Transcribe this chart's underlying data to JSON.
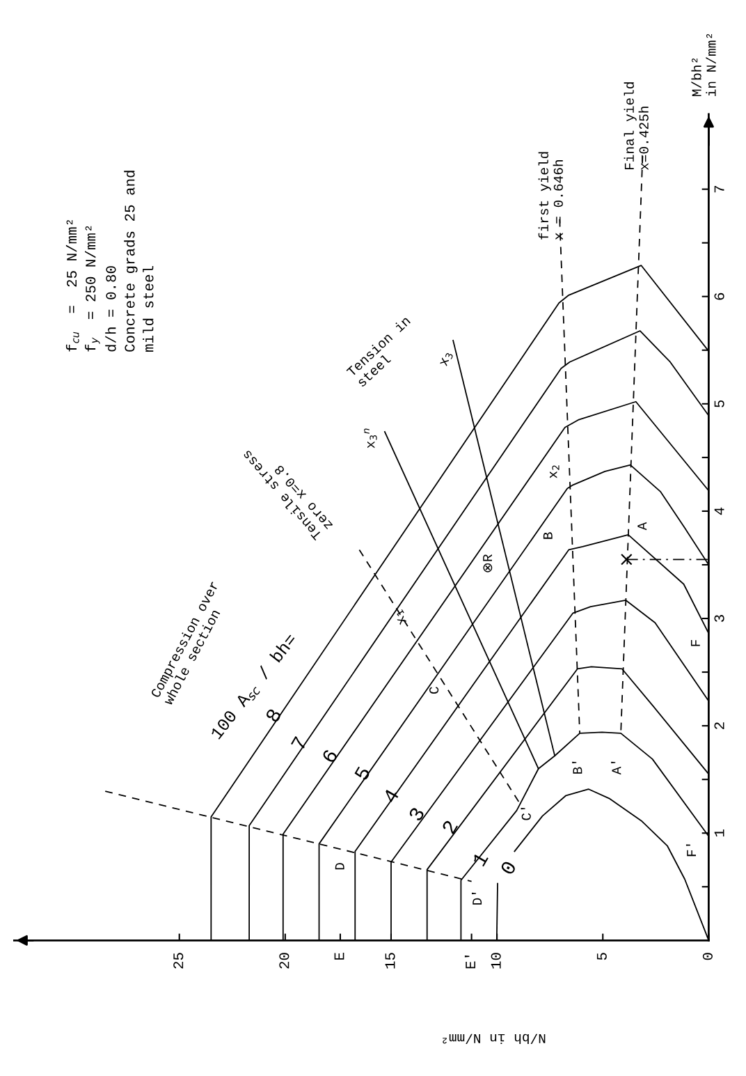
{
  "chart_data": {
    "type": "line",
    "xlabel": "N/bh in N/mm²",
    "ylabel": "M/bh²\nin N/mm²",
    "xlim": [
      32.8,
      0
    ],
    "ylim": [
      0,
      7.7
    ],
    "xticks": [
      0,
      5,
      10,
      {
        "value": 11.2,
        "label": "E'"
      },
      15,
      {
        "value": 17.4,
        "label": "E"
      },
      20,
      25
    ],
    "yticks": [
      {
        "value": 0.5,
        "label": null
      },
      1,
      {
        "value": 1.5,
        "label": null
      },
      2,
      {
        "value": 2.5,
        "label": null
      },
      3,
      {
        "value": 3.5,
        "label": null
      },
      4,
      {
        "value": 4.5,
        "label": null
      },
      5,
      {
        "value": 5.5,
        "label": null
      },
      6,
      {
        "value": 6.5,
        "label": null
      },
      7
    ],
    "annotations": [
      "f$_{cu}$  =  25 N/mm²\nf$_{y}$  = 250 N/mm²\nd/h = 0.80\nConcrete grads 25 and\nmild steel",
      "Compression over\nwhole section",
      "100 A$_{sc}$ / bh=",
      {
        "text": "0",
        "x": 10.0,
        "y": 0.53
      },
      {
        "text": "1",
        "x": 10.74,
        "y": 0.75
      },
      "2",
      "3",
      {
        "text": "4",
        "x": 14.95,
        "y": 1.34
      },
      {
        "text": "5",
        "x": 16.3,
        "y": 1.55
      },
      "6",
      {
        "text": "7",
        "x": 19.29,
        "y": 1.83
      },
      {
        "text": "8",
        "x": 20.5,
        "y": 2.09
      },
      "Tensile stress\nzero x=0.8",
      "Tension in\nsteel",
      "x$_{3}$",
      "x$_{3}$$^{n}$",
      {
        "text": "x$_{1}$",
        "x": 14.57,
        "y": 3.01
      },
      "x$_{2}$",
      "⊗R",
      "first yield\nx = 0.646h",
      "Final yield\nx=0.425h",
      "A",
      "B",
      "A'",
      "B'",
      "C",
      "C'",
      "D",
      "D'",
      "F",
      "F'"
    ],
    "series": [
      {
        "color": "#000000",
        "line_style": "solid",
        "x": [
          10.01,
          9.97
        ],
        "values": [
          0,
          0.53
        ]
      },
      {
        "color": "#000000",
        "line_style": "solid",
        "x": [
          9.17,
          7.85,
          6.74,
          5.68,
          4.67,
          3.15,
          1.95,
          1.13,
          0
        ],
        "values": [
          0.83,
          1.16,
          1.35,
          1.41,
          1.32,
          1.11,
          0.88,
          0.57,
          0
        ]
      },
      {
        "color": "#000000",
        "line_style": "solid",
        "x": [
          11.7,
          11.7,
          9.07,
          8.04,
          7.27,
          6.09,
          5.04,
          4.15,
          2.66,
          0
        ],
        "values": [
          0,
          0.56,
          1.21,
          1.6,
          1.72,
          1.93,
          1.94,
          1.93,
          1.69,
          0.97
        ]
      },
      {
        "color": "#000000",
        "line_style": "solid",
        "x": [
          13.3,
          13.3,
          6.2,
          5.54,
          4.09,
          2.61,
          0
        ],
        "values": [
          0,
          0.66,
          2.53,
          2.55,
          2.53,
          2.18,
          1.55
        ]
      },
      {
        "color": "#000000",
        "line_style": "solid",
        "x": [
          15.0,
          15.0,
          6.41,
          5.58,
          3.92,
          2.53,
          0
        ],
        "values": [
          0,
          0.73,
          3.05,
          3.11,
          3.17,
          2.96,
          2.23
        ]
      },
      {
        "color": "#000000",
        "line_style": "solid",
        "x": [
          16.7,
          16.7,
          6.61,
          5.95,
          3.8,
          1.18,
          0
        ],
        "values": [
          0,
          0.83,
          3.64,
          3.67,
          3.78,
          3.32,
          2.86
        ]
      },
      {
        "color": "#000000",
        "line_style": "solid",
        "x": [
          18.4,
          18.4,
          6.68,
          6.45,
          4.9,
          3.7,
          2.27,
          1.12,
          0
        ],
        "values": [
          0,
          0.9,
          4.21,
          4.24,
          4.37,
          4.43,
          4.18,
          3.84,
          3.5
        ]
      },
      {
        "color": "#000000",
        "line_style": "solid",
        "x": [
          20.1,
          20.1,
          6.79,
          6.16,
          3.44,
          0
        ],
        "values": [
          0,
          0.99,
          4.78,
          4.85,
          5.02,
          4.19
        ]
      },
      {
        "color": "#000000",
        "line_style": "solid",
        "x": [
          21.7,
          21.7,
          6.97,
          6.56,
          3.24,
          1.82,
          0
        ],
        "values": [
          0,
          1.07,
          5.33,
          5.39,
          5.68,
          5.39,
          4.89
        ]
      },
      {
        "color": "#000000",
        "line_style": "solid",
        "x": [
          23.5,
          23.5,
          7.07,
          6.63,
          3.19,
          0
        ],
        "values": [
          0,
          1.15,
          5.94,
          6.01,
          6.29,
          5.49
        ]
      },
      {
        "color": "#000000",
        "line_style": "dashed",
        "x": [
          28.5,
          11.2
        ],
        "values": [
          1.39,
          0.55
        ]
      },
      {
        "color": "#000000",
        "line_style": "dashed",
        "x": [
          7.04,
          6.09
        ],
        "values": [
          6.72,
          1.93
        ]
      },
      {
        "color": "#000000",
        "line_style": "dashed",
        "x": [
          3.12,
          4.15
        ],
        "values": [
          7.31,
          1.93
        ]
      },
      {
        "color": "#000000",
        "line_style": "dashed",
        "x": [
          16.5,
          8.9
        ],
        "values": [
          3.64,
          1.27
        ]
      },
      {
        "color": "#000000",
        "line_style": "solid",
        "x": [
          15.3,
          8.04
        ],
        "values": [
          4.74,
          1.6
        ]
      },
      {
        "color": "#000000",
        "line_style": "solid",
        "x": [
          12.07,
          7.27
        ],
        "values": [
          5.59,
          1.72
        ]
      },
      {
        "color": "#000000",
        "line_style": "dashdot",
        "x": [
          3.88,
          0
        ],
        "values": [
          3.55,
          3.55
        ]
      },
      {
        "type": "scatter",
        "color": "#000000",
        "marker": "cross",
        "x": [
          3.88
        ],
        "values": [
          3.55
        ]
      }
    ]
  }
}
